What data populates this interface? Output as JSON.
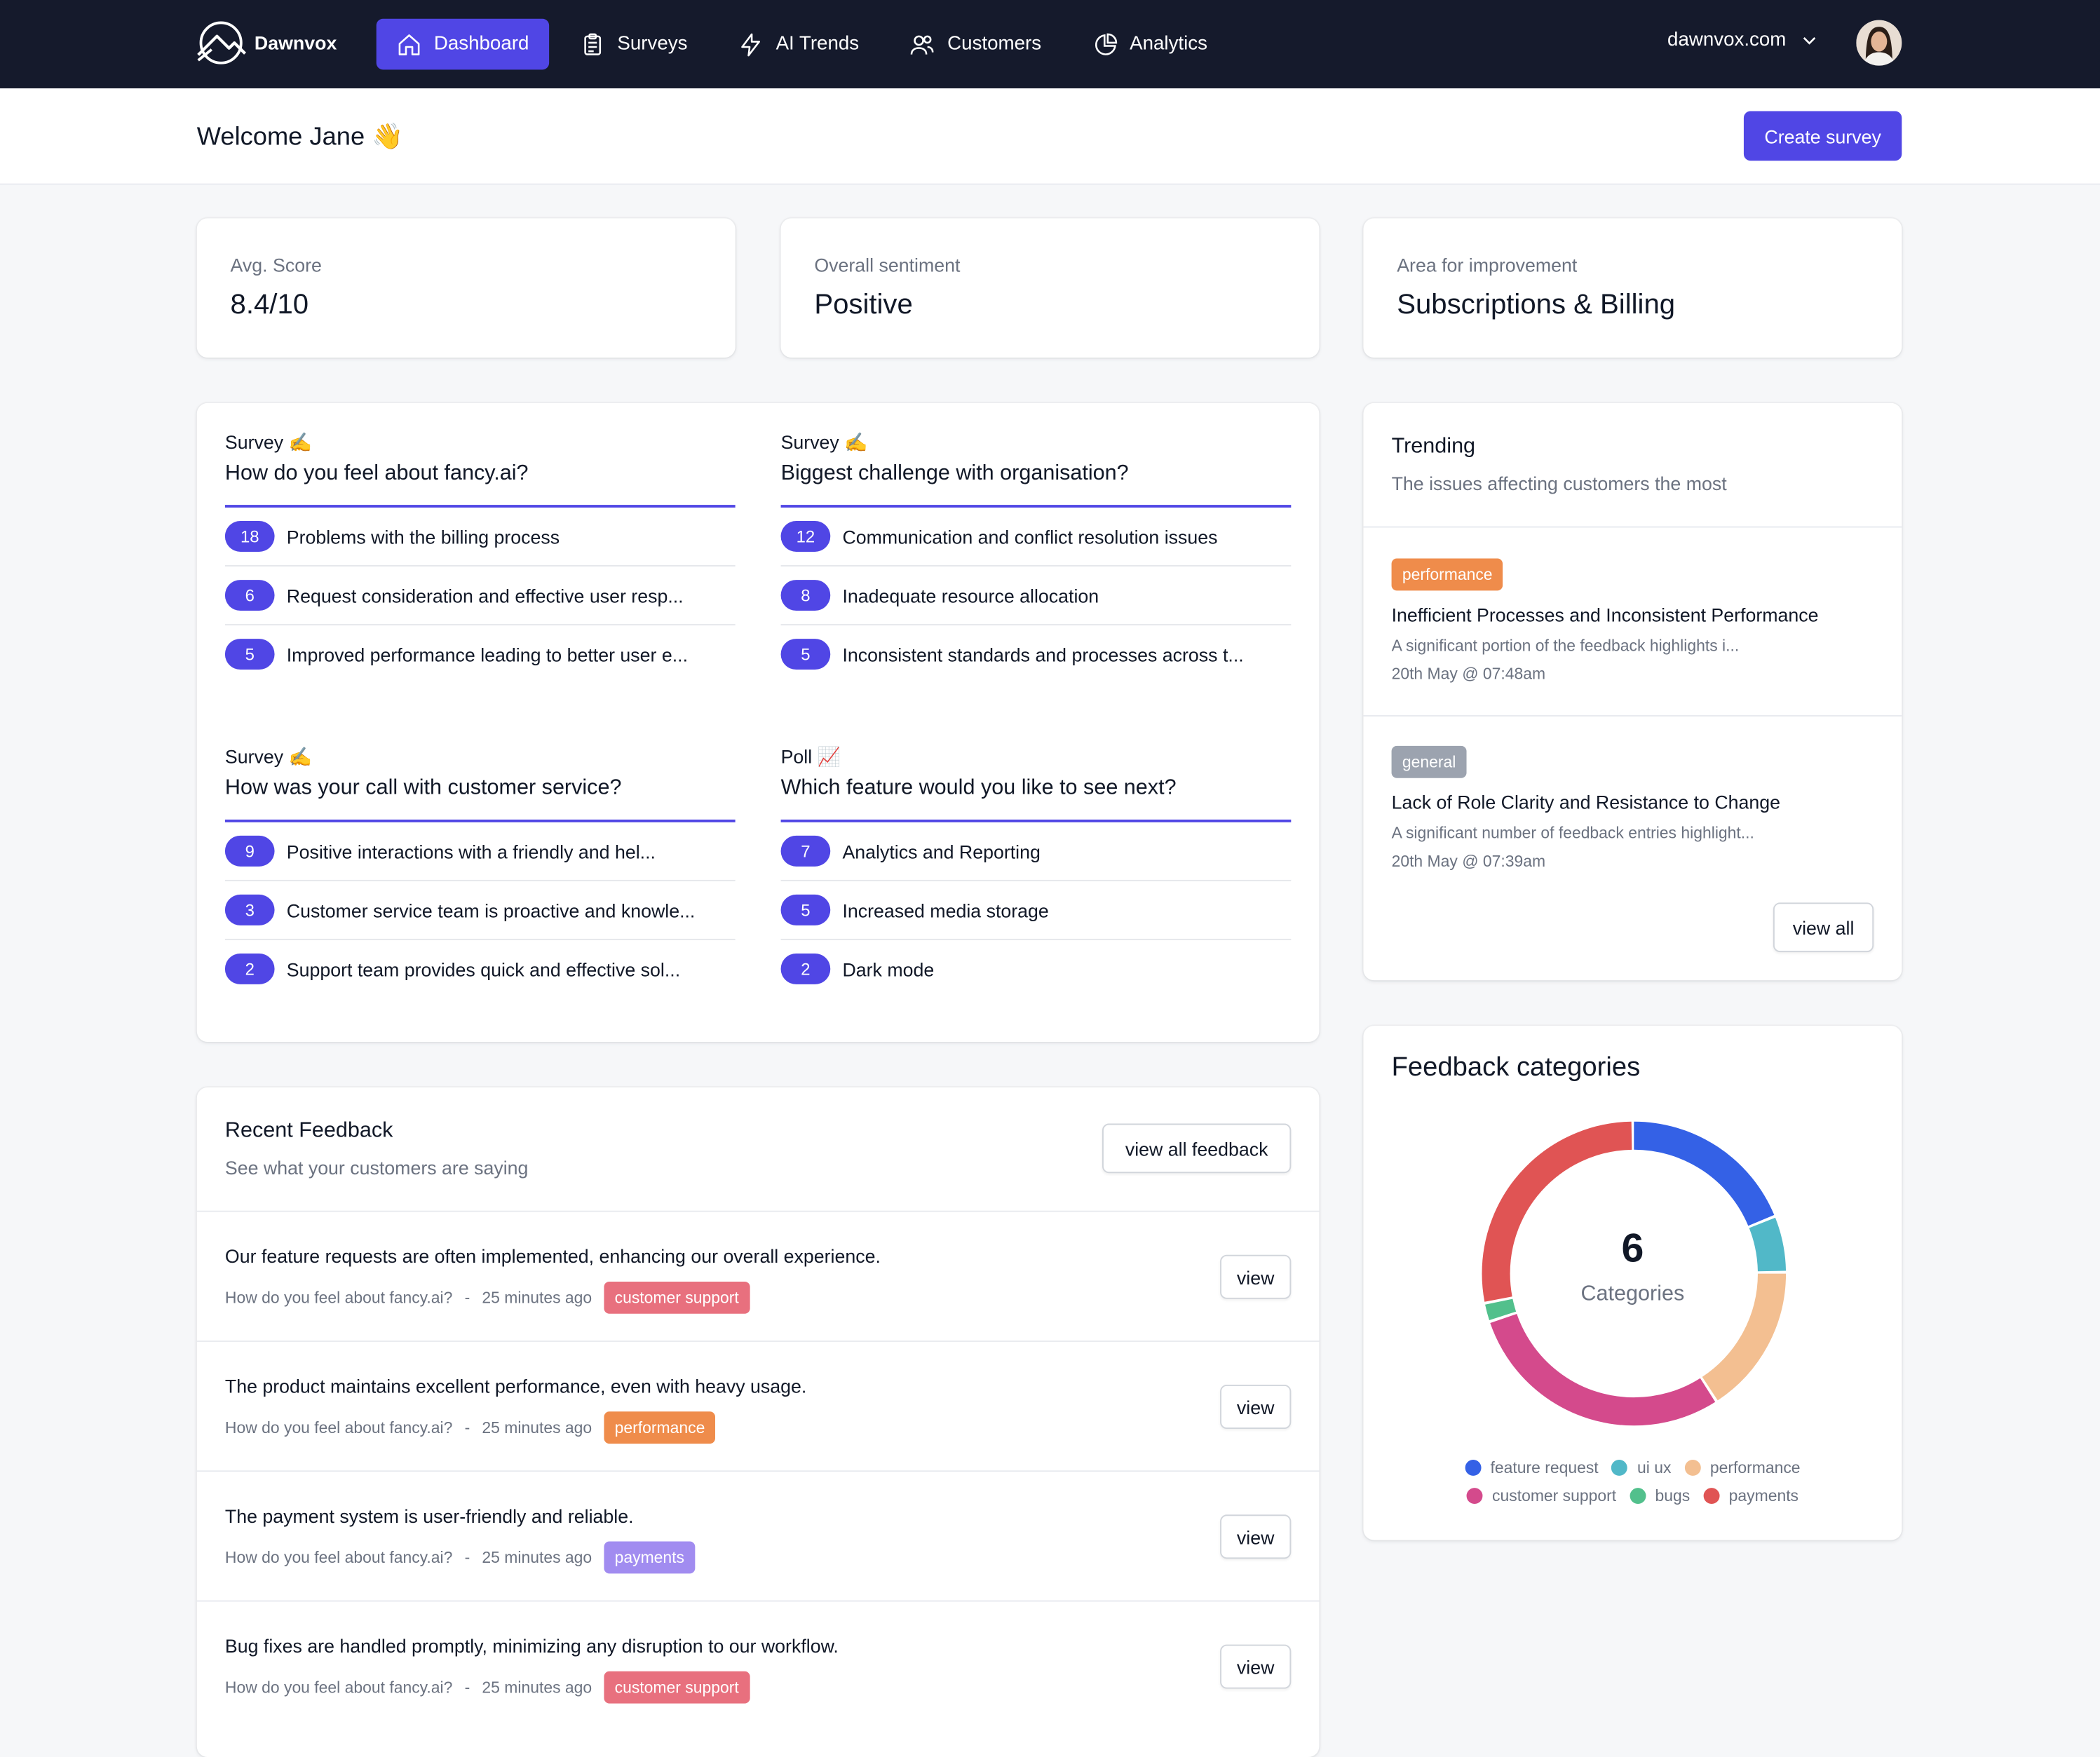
{
  "brand": {
    "name": "Dawnvox"
  },
  "nav": [
    {
      "label": "Dashboard",
      "icon": "home-icon",
      "active": true
    },
    {
      "label": "Surveys",
      "icon": "clipboard-icon",
      "active": false
    },
    {
      "label": "AI Trends",
      "icon": "lightning-icon",
      "active": false
    },
    {
      "label": "Customers",
      "icon": "users-icon",
      "active": false
    },
    {
      "label": "Analytics",
      "icon": "pie-chart-icon",
      "active": false
    }
  ],
  "account": {
    "domain": "dawnvox.com"
  },
  "welcome": {
    "title": "Welcome Jane 👋",
    "create_label": "Create survey"
  },
  "stats": [
    {
      "label": "Avg. Score",
      "value": "8.4/10"
    },
    {
      "label": "Overall sentiment",
      "value": "Positive"
    },
    {
      "label": "Area for improvement",
      "value": "Subscriptions & Billing"
    }
  ],
  "questions": [
    {
      "kind": "Survey ✍️",
      "title": "How do you feel about fancy.ai?",
      "rows": [
        {
          "count": "18",
          "text": "Problems with the billing process"
        },
        {
          "count": "6",
          "text": "Request consideration and effective user resp..."
        },
        {
          "count": "5",
          "text": "Improved performance leading to better user e..."
        }
      ]
    },
    {
      "kind": "Survey ✍️",
      "title": "Biggest challenge with organisation?",
      "rows": [
        {
          "count": "12",
          "text": "Communication and conflict resolution issues"
        },
        {
          "count": "8",
          "text": "Inadequate resource allocation"
        },
        {
          "count": "5",
          "text": "Inconsistent standards and processes across t..."
        }
      ]
    },
    {
      "kind": "Survey ✍️",
      "title": "How was your call with customer service?",
      "rows": [
        {
          "count": "9",
          "text": "Positive interactions with a friendly and hel..."
        },
        {
          "count": "3",
          "text": "Customer service team is proactive and knowle..."
        },
        {
          "count": "2",
          "text": "Support team provides quick and effective sol..."
        }
      ]
    },
    {
      "kind": "Poll 📈",
      "title": "Which feature would you like to see next?",
      "rows": [
        {
          "count": "7",
          "text": "Analytics and Reporting"
        },
        {
          "count": "5",
          "text": "Increased media storage"
        },
        {
          "count": "2",
          "text": "Dark mode"
        }
      ]
    }
  ],
  "trending": {
    "title": "Trending",
    "subtitle": "The issues affecting customers the most",
    "items": [
      {
        "tag": "performance",
        "tag_color": "#ef8c4b",
        "title": "Inefficient Processes and Inconsistent Performance",
        "desc": "A significant portion of the feedback highlights i...",
        "date": "20th May @ 07:48am"
      },
      {
        "tag": "general",
        "tag_color": "#9ca3af",
        "title": "Lack of Role Clarity and Resistance to Change",
        "desc": "A significant number of feedback entries highlight...",
        "date": "20th May @ 07:39am"
      }
    ],
    "view_all_label": "view all"
  },
  "recent": {
    "title": "Recent Feedback",
    "subtitle": "See what your customers are saying",
    "view_all_label": "view all feedback",
    "separator": "-",
    "items": [
      {
        "text": "Our feature requests are often implemented, enhancing our overall experience.",
        "survey": "How do you feel about fancy.ai?",
        "time": "25 minutes ago",
        "tag": "customer support",
        "tag_color": "#e8707e",
        "view_label": "view"
      },
      {
        "text": "The product maintains excellent performance, even with heavy usage.",
        "survey": "How do you feel about fancy.ai?",
        "time": "25 minutes ago",
        "tag": "performance",
        "tag_color": "#ef8c4b",
        "view_label": "view"
      },
      {
        "text": "The payment system is user-friendly and reliable.",
        "survey": "How do you feel about fancy.ai?",
        "time": "25 minutes ago",
        "tag": "payments",
        "tag_color": "#a18cf0",
        "view_label": "view"
      },
      {
        "text": "Bug fixes are handled promptly, minimizing any disruption to our workflow.",
        "survey": "How do you feel about fancy.ai?",
        "time": "25 minutes ago",
        "tag": "customer support",
        "tag_color": "#e8707e",
        "view_label": "view"
      }
    ]
  },
  "feedback_categories": {
    "title": "Feedback categories",
    "center_value": "6",
    "center_label": "Categories"
  },
  "chart_data": {
    "type": "pie",
    "donut": true,
    "title": "Feedback categories",
    "categories": [
      "feature request",
      "ui ux",
      "performance",
      "customer support",
      "bugs",
      "payments"
    ],
    "values": [
      19,
      6,
      16,
      29,
      2,
      28
    ],
    "colors": [
      "#3461e6",
      "#51b8c8",
      "#f3bf91",
      "#d44a8c",
      "#52c08c",
      "#e05454"
    ],
    "legend_position": "bottom"
  }
}
